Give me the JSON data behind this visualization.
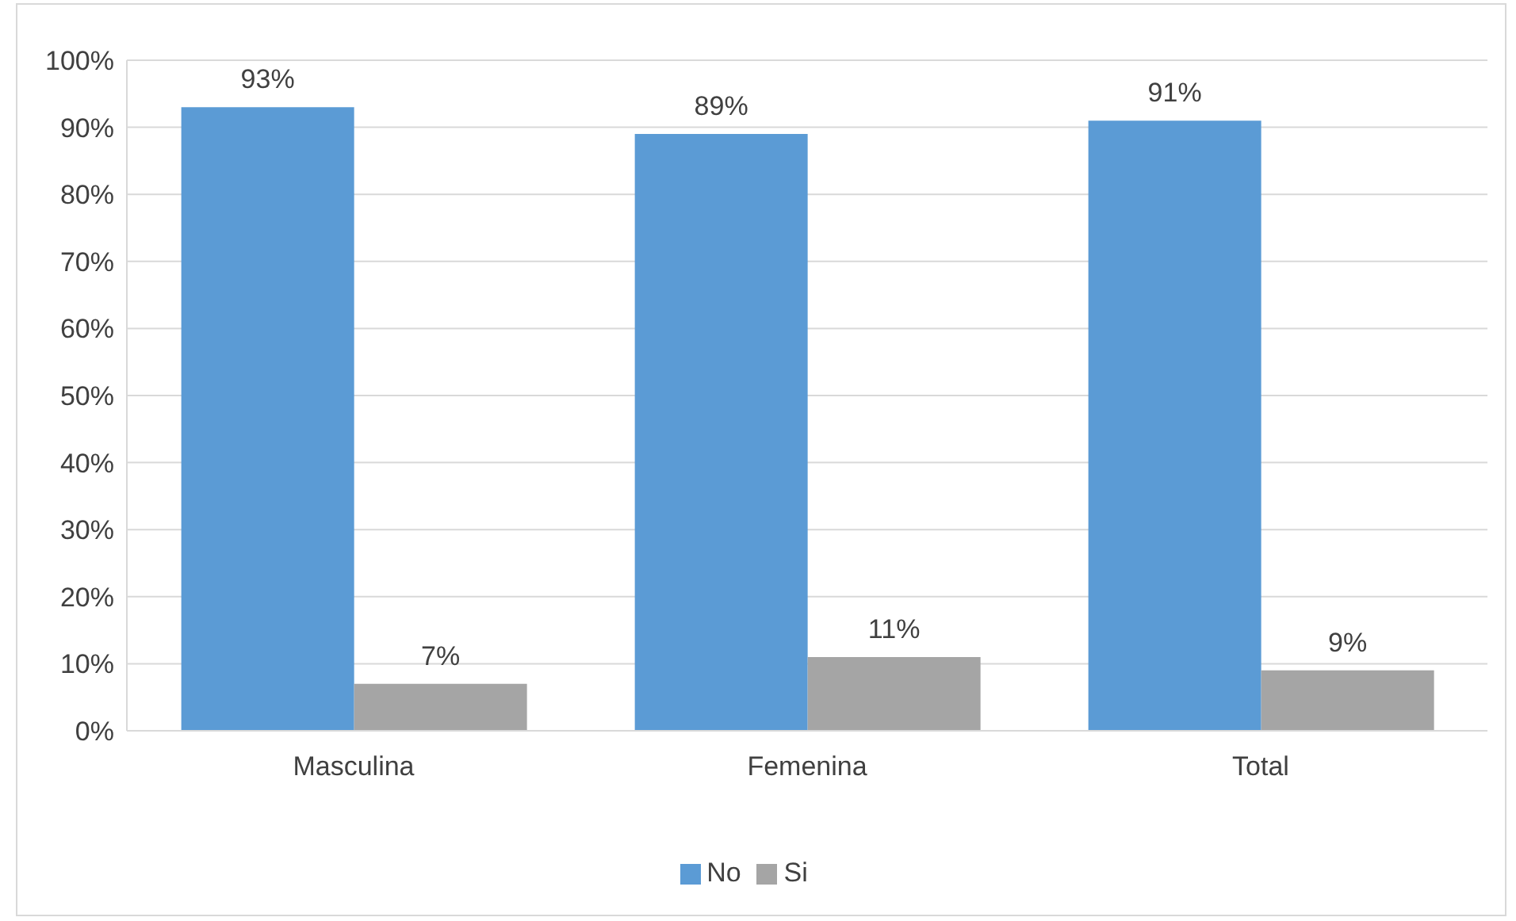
{
  "chart_data": {
    "type": "bar",
    "categories": [
      "Masculina",
      "Femenina",
      "Total"
    ],
    "series": [
      {
        "name": "No",
        "color": "#5b9bd5",
        "values": [
          93,
          89,
          91
        ],
        "value_labels": [
          "93%",
          "89%",
          "91%"
        ]
      },
      {
        "name": "Si",
        "color": "#a5a5a5",
        "values": [
          7,
          11,
          9
        ],
        "value_labels": [
          "7%",
          "11%",
          "9%"
        ]
      }
    ],
    "ylim": [
      0,
      100
    ],
    "yticks": [
      {
        "value": 0,
        "label": "0%"
      },
      {
        "value": 10,
        "label": "10%"
      },
      {
        "value": 20,
        "label": "20%"
      },
      {
        "value": 30,
        "label": "30%"
      },
      {
        "value": 40,
        "label": "40%"
      },
      {
        "value": 50,
        "label": "50%"
      },
      {
        "value": 60,
        "label": "60%"
      },
      {
        "value": 70,
        "label": "70%"
      },
      {
        "value": 80,
        "label": "80%"
      },
      {
        "value": 90,
        "label": "90%"
      },
      {
        "value": 100,
        "label": "100%"
      }
    ],
    "grid": "y",
    "legend": "bottom"
  }
}
